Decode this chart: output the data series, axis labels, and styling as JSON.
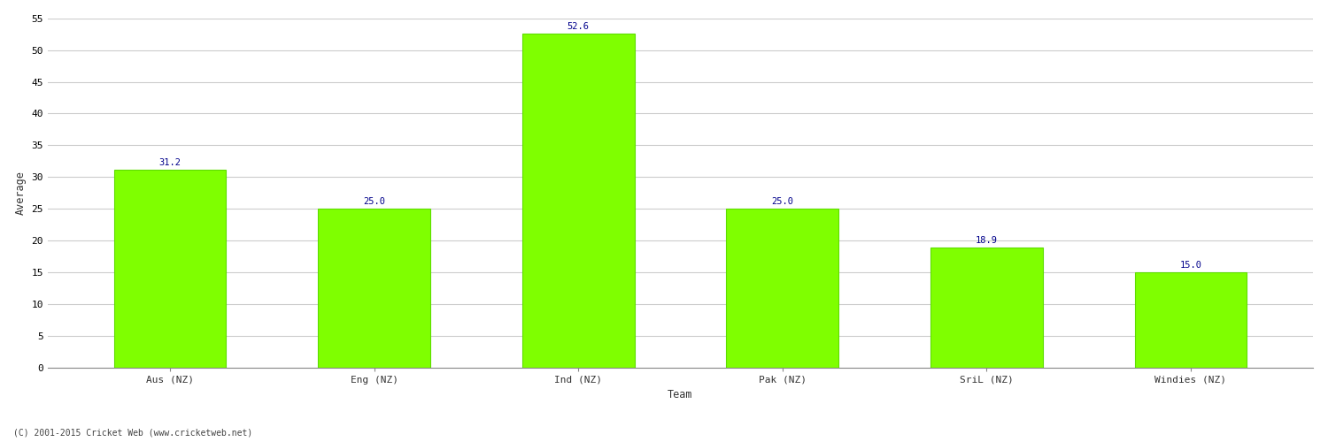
{
  "categories": [
    "Aus (NZ)",
    "Eng (NZ)",
    "Ind (NZ)",
    "Pak (NZ)",
    "SriL (NZ)",
    "Windies (NZ)"
  ],
  "values": [
    31.2,
    25.0,
    52.6,
    25.0,
    18.9,
    15.0
  ],
  "bar_color": "#7fff00",
  "bar_edge_color": "#5ddd00",
  "xlabel": "Team",
  "ylabel": "Average",
  "ylim": [
    0,
    55
  ],
  "yticks": [
    0,
    5,
    10,
    15,
    20,
    25,
    30,
    35,
    40,
    45,
    50,
    55
  ],
  "label_color": "#00008b",
  "label_fontsize": 7.5,
  "axis_label_fontsize": 8.5,
  "tick_label_fontsize": 8,
  "background_color": "#ffffff",
  "grid_color": "#cccccc",
  "footer_text": "(C) 2001-2015 Cricket Web (www.cricketweb.net)",
  "footer_fontsize": 7,
  "footer_color": "#444444",
  "bar_width": 0.55,
  "title_fontsize": 11
}
